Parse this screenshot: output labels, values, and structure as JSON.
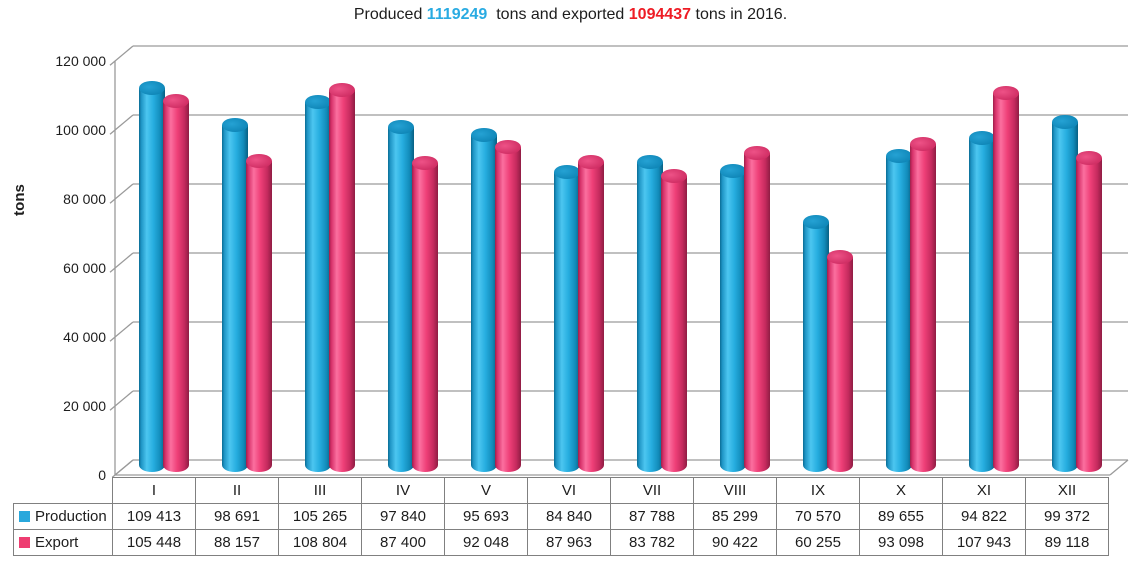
{
  "chart_data": {
    "type": "bar",
    "style": "3d-cylinder-clustered",
    "title_parts": [
      {
        "text": "Produced ",
        "color": "#1d1d1d",
        "bold": false
      },
      {
        "text": "1119249",
        "color": "#29abe2",
        "bold": true
      },
      {
        "text": "  tons and exported ",
        "color": "#1d1d1d",
        "bold": false
      },
      {
        "text": "1094437",
        "color": "#ee1c25",
        "bold": true
      },
      {
        "text": " tons in 2016.",
        "color": "#1d1d1d",
        "bold": false
      }
    ],
    "categories": [
      "I",
      "II",
      "III",
      "IV",
      "V",
      "VI",
      "VII",
      "VIII",
      "IX",
      "X",
      "XI",
      "XII"
    ],
    "series": [
      {
        "name": "Production",
        "color": "#29a8dc",
        "values": [
          109413,
          98691,
          105265,
          97840,
          95693,
          84840,
          87788,
          85299,
          70570,
          89655,
          94822,
          99372
        ],
        "display": [
          "109 413",
          "98 691",
          "105 265",
          "97 840",
          "95 693",
          "84 840",
          "87 788",
          "85 299",
          "70 570",
          "89 655",
          "94 822",
          "99 372"
        ]
      },
      {
        "name": "Export",
        "color": "#ee3d71",
        "values": [
          105448,
          88157,
          108804,
          87400,
          92048,
          87963,
          83782,
          90422,
          60255,
          93098,
          107943,
          89118
        ],
        "display": [
          "105 448",
          "88 157",
          "108 804",
          "87 400",
          "92 048",
          "87 963",
          "83 782",
          "90 422",
          "60 255",
          "93 098",
          "107 943",
          "89 118"
        ]
      }
    ],
    "ylabel": "tons",
    "ylim": [
      0,
      120000
    ],
    "yticks": {
      "values": [
        0,
        20000,
        40000,
        60000,
        80000,
        100000,
        120000
      ],
      "labels": [
        "0",
        "20 000",
        "40 000",
        "60 000",
        "80 000",
        "100 000",
        "120 000"
      ]
    },
    "grid": true,
    "legend_position": "table-left"
  }
}
